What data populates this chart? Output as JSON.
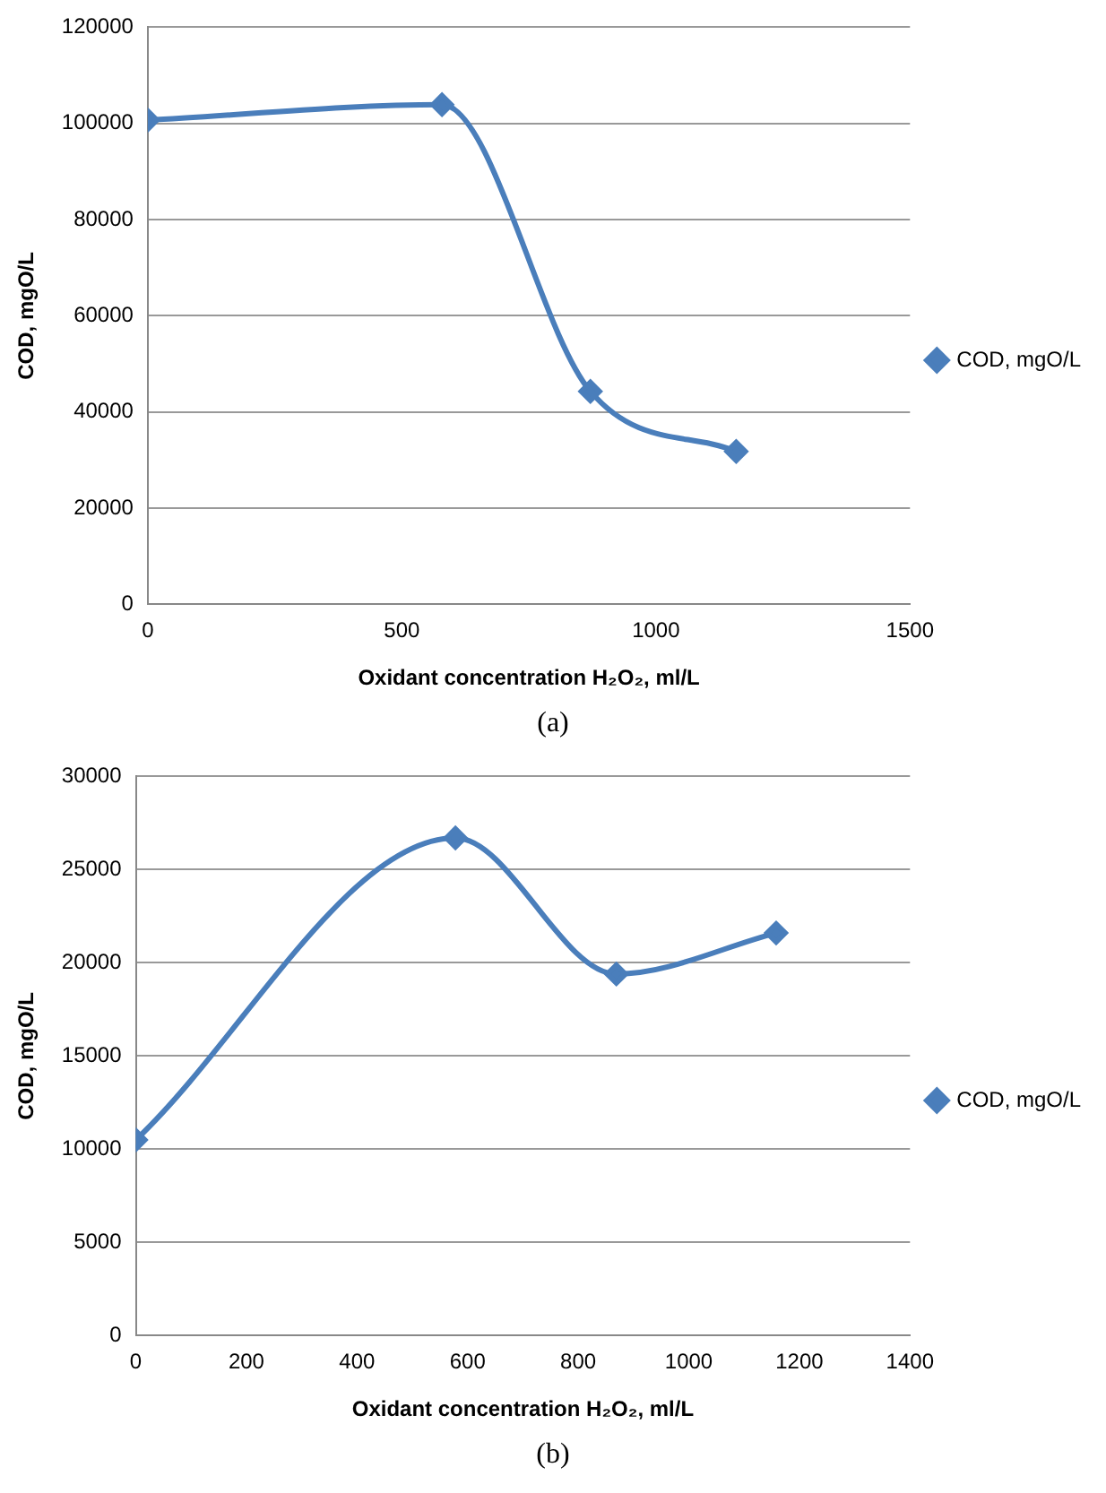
{
  "chart_data": [
    {
      "type": "line",
      "xlabel": "Oxidant concentration H₂O₂, ml/L",
      "ylabel": "COD, mgO/L",
      "x": [
        0,
        579,
        871,
        1158
      ],
      "series": [
        {
          "name": "COD, mgO/L",
          "color": "#4a7ebb",
          "values": [
            100700,
            103900,
            44300,
            31800
          ]
        }
      ],
      "xlim": [
        0,
        1500
      ],
      "xticks": [
        0,
        500,
        1000,
        1500
      ],
      "ylim": [
        0,
        120000
      ],
      "yticks": [
        0,
        20000,
        40000,
        60000,
        80000,
        100000,
        120000
      ],
      "grid": "y",
      "legend": "right",
      "marker": "diamond",
      "annotations": [
        "(a)"
      ]
    },
    {
      "type": "line",
      "xlabel": "Oxidant concentration H₂O₂, ml/L",
      "ylabel": "COD, mgO/L",
      "x": [
        0,
        578,
        869,
        1158
      ],
      "series": [
        {
          "name": "COD, mgO/L",
          "color": "#4a7ebb",
          "values": [
            10500,
            26700,
            19400,
            21600
          ]
        }
      ],
      "xlim": [
        0,
        1400
      ],
      "xticks": [
        0,
        200,
        400,
        600,
        800,
        1000,
        1200,
        1400
      ],
      "ylim": [
        0,
        30000
      ],
      "yticks": [
        0,
        5000,
        10000,
        15000,
        20000,
        25000,
        30000
      ],
      "grid": "y",
      "legend": "right",
      "marker": "diamond",
      "annotations": [
        "(b)"
      ]
    }
  ]
}
